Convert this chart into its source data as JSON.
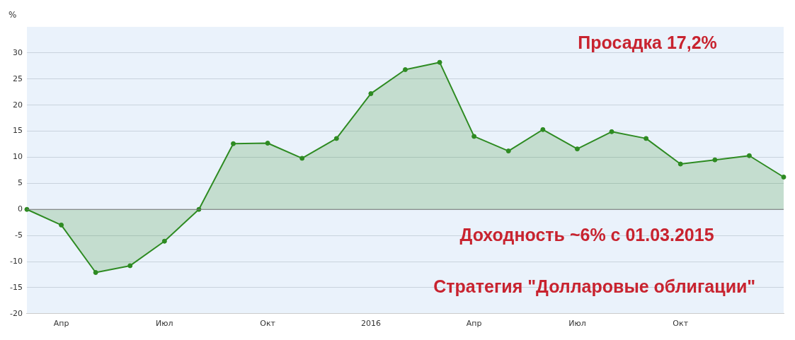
{
  "chart_data": {
    "type": "area",
    "ylabel": "%",
    "categories": [
      null,
      "Апр",
      null,
      null,
      "Июл",
      null,
      null,
      "Окт",
      null,
      null,
      "2016",
      null,
      null,
      "Апр",
      null,
      null,
      "Июл",
      null,
      null,
      "Окт",
      null,
      null,
      null
    ],
    "series": [
      {
        "color": "#2e8b22",
        "values": [
          0,
          -3,
          -12.1,
          -10.8,
          -6.1,
          0,
          12.6,
          12.7,
          9.8,
          13.6,
          22.2,
          26.8,
          28.2,
          14.0,
          11.2,
          15.3,
          11.6,
          14.9,
          13.6,
          8.7,
          9.5,
          10.3,
          6.2
        ]
      }
    ],
    "ylim": [
      -20,
      35
    ],
    "yticks": [
      -20,
      -15,
      -10,
      -5,
      0,
      5,
      10,
      15,
      20,
      25,
      30
    ],
    "grid": "y",
    "marker": "circle",
    "legend": false,
    "annotations": [
      "Просадка 17,2%",
      "Доходность ~6% с 01.03.2015",
      "Стратегия \"Долларовые облигации\""
    ]
  }
}
